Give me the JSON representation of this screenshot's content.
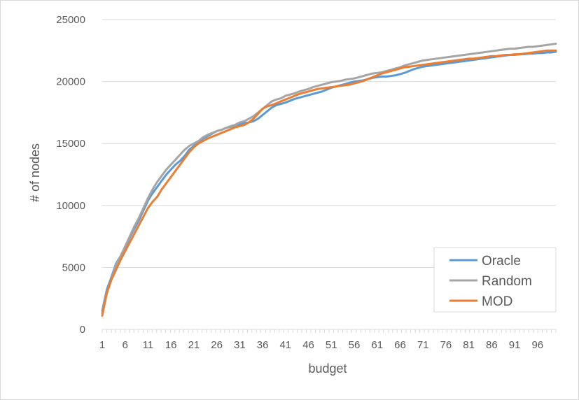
{
  "chart_data": {
    "type": "line",
    "xlabel": "budget",
    "ylabel": "# of nodes",
    "xlim": [
      1,
      100
    ],
    "ylim": [
      0,
      25000
    ],
    "y_ticks": [
      "0",
      "5000",
      "10000",
      "15000",
      "20000",
      "25000"
    ],
    "x_tick_labels": [
      "1",
      "6",
      "11",
      "16",
      "21",
      "26",
      "31",
      "36",
      "41",
      "46",
      "51",
      "56",
      "61",
      "66",
      "71",
      "76",
      "81",
      "86",
      "91",
      "96"
    ],
    "grid": true,
    "legend": "bottom-right",
    "x": [
      1,
      2,
      3,
      4,
      5,
      6,
      7,
      8,
      9,
      10,
      11,
      12,
      13,
      14,
      15,
      16,
      17,
      18,
      19,
      20,
      21,
      22,
      23,
      24,
      25,
      26,
      27,
      28,
      29,
      30,
      31,
      32,
      33,
      34,
      35,
      36,
      37,
      38,
      39,
      40,
      41,
      42,
      43,
      44,
      45,
      46,
      47,
      48,
      49,
      50,
      51,
      52,
      53,
      54,
      55,
      56,
      57,
      58,
      59,
      60,
      61,
      62,
      63,
      64,
      65,
      66,
      67,
      68,
      69,
      70,
      71,
      72,
      73,
      74,
      75,
      76,
      77,
      78,
      79,
      80,
      81,
      82,
      83,
      84,
      85,
      86,
      87,
      88,
      89,
      90,
      91,
      92,
      93,
      94,
      95,
      96,
      97,
      98,
      99,
      100
    ],
    "series": [
      {
        "name": "Oracle",
        "color": "#5b9bd5",
        "values": [
          1500,
          3200,
          4200,
          5300,
          5900,
          6600,
          7400,
          8100,
          8800,
          9600,
          10400,
          11000,
          11500,
          12000,
          12500,
          12900,
          13300,
          13600,
          14000,
          14500,
          14800,
          15100,
          15400,
          15600,
          15800,
          16000,
          16100,
          16250,
          16350,
          16450,
          16550,
          16650,
          16700,
          16800,
          17000,
          17300,
          17600,
          17900,
          18100,
          18200,
          18300,
          18450,
          18600,
          18700,
          18800,
          18900,
          19000,
          19100,
          19200,
          19350,
          19500,
          19600,
          19700,
          19800,
          19900,
          20000,
          20050,
          20100,
          20200,
          20300,
          20350,
          20400,
          20400,
          20450,
          20500,
          20600,
          20700,
          20850,
          21000,
          21100,
          21200,
          21250,
          21300,
          21350,
          21400,
          21450,
          21500,
          21550,
          21600,
          21650,
          21700,
          21750,
          21800,
          21850,
          21900,
          21950,
          22000,
          22050,
          22100,
          22150,
          22150,
          22200,
          22200,
          22250,
          22250,
          22300,
          22300,
          22350,
          22350,
          22400
        ]
      },
      {
        "name": "Random",
        "color": "#a5a5a5",
        "values": [
          1300,
          3000,
          4000,
          5200,
          5900,
          6700,
          7500,
          8300,
          9000,
          9800,
          10600,
          11300,
          11900,
          12400,
          12900,
          13300,
          13700,
          14100,
          14500,
          14800,
          15000,
          15200,
          15500,
          15700,
          15850,
          16000,
          16100,
          16250,
          16400,
          16500,
          16700,
          16800,
          17000,
          17200,
          17500,
          17800,
          18100,
          18400,
          18550,
          18650,
          18850,
          18950,
          19050,
          19200,
          19300,
          19400,
          19550,
          19650,
          19750,
          19850,
          19950,
          20000,
          20050,
          20150,
          20200,
          20250,
          20350,
          20450,
          20550,
          20650,
          20700,
          20750,
          20850,
          20950,
          21050,
          21150,
          21300,
          21400,
          21500,
          21600,
          21700,
          21750,
          21800,
          21850,
          21900,
          21950,
          22000,
          22050,
          22100,
          22150,
          22200,
          22250,
          22300,
          22350,
          22400,
          22450,
          22500,
          22550,
          22600,
          22650,
          22650,
          22700,
          22750,
          22800,
          22800,
          22850,
          22900,
          22950,
          23000,
          23050
        ]
      },
      {
        "name": "MOD",
        "color": "#ed7d31",
        "values": [
          1100,
          2900,
          4000,
          4800,
          5600,
          6300,
          7000,
          7700,
          8400,
          9100,
          9800,
          10300,
          10700,
          11300,
          11800,
          12300,
          12800,
          13300,
          13800,
          14300,
          14700,
          15000,
          15200,
          15400,
          15550,
          15700,
          15850,
          16000,
          16150,
          16300,
          16400,
          16500,
          16700,
          17000,
          17400,
          17800,
          18000,
          18100,
          18250,
          18400,
          18550,
          18700,
          18850,
          19000,
          19100,
          19200,
          19300,
          19400,
          19450,
          19500,
          19550,
          19600,
          19650,
          19700,
          19750,
          19850,
          19950,
          20050,
          20200,
          20350,
          20500,
          20650,
          20750,
          20850,
          20950,
          21050,
          21150,
          21200,
          21250,
          21300,
          21350,
          21400,
          21450,
          21500,
          21550,
          21600,
          21650,
          21700,
          21750,
          21800,
          21850,
          21850,
          21900,
          21950,
          22000,
          22050,
          22050,
          22100,
          22150,
          22150,
          22200,
          22200,
          22250,
          22300,
          22350,
          22400,
          22450,
          22500,
          22500,
          22500
        ]
      }
    ]
  }
}
